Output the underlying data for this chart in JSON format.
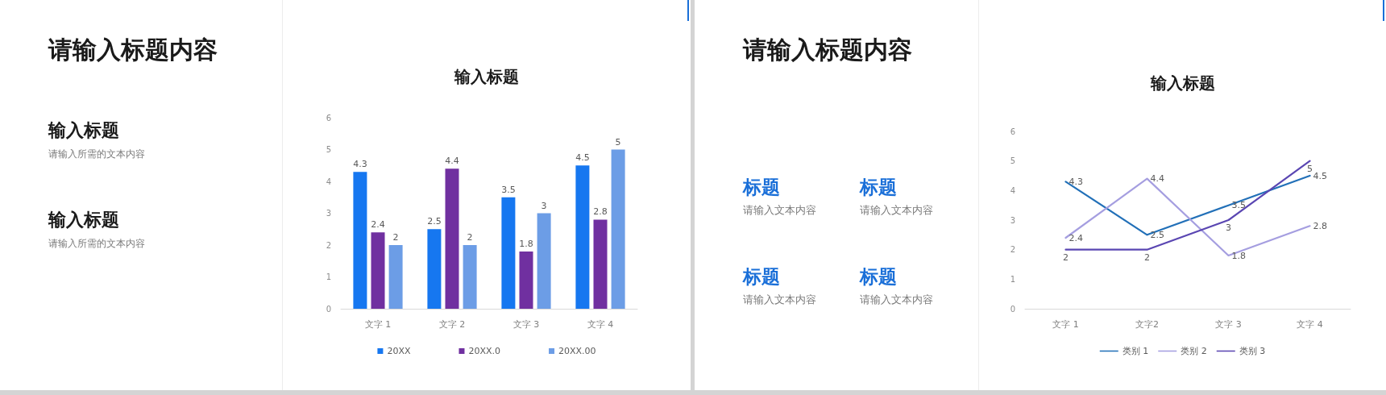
{
  "chart_data": [
    {
      "type": "other",
      "title": "请输入标题内容",
      "annotations": [
        "输入标题",
        "请输入所需的文本内容",
        "输入标题",
        "请输入所需的文本内容"
      ]
    },
    {
      "type": "bar",
      "title": "输入标题",
      "categories": [
        "文字 1",
        "文字 2",
        "文字 3",
        "文字 4"
      ],
      "series": [
        {
          "name": "20XX",
          "color": "#1677f0",
          "values": [
            4.3,
            2.5,
            3.5,
            4.5
          ]
        },
        {
          "name": "20XX.0",
          "color": "#7030a0",
          "values": [
            2.4,
            4.4,
            1.8,
            2.8
          ]
        },
        {
          "name": "20XX.00",
          "color": "#6c9de6",
          "values": [
            2,
            2,
            3,
            5
          ]
        }
      ],
      "ylim": [
        0,
        6
      ],
      "yticks": [
        0,
        1,
        2,
        3,
        4,
        5,
        6
      ],
      "grid": false,
      "legend": "bottom",
      "data_labels": true
    },
    {
      "type": "other",
      "title": "请输入标题内容",
      "annotations": [
        "标题",
        "请输入文本内容",
        "标题",
        "请输入文本内容",
        "标题",
        "请输入文本内容",
        "标题",
        "请输入文本内容"
      ]
    },
    {
      "type": "line",
      "title": "输入标题",
      "categories": [
        "文字 1",
        "文字2",
        "文字 3",
        "文字 4"
      ],
      "series": [
        {
          "name": "类别 1",
          "color": "#2270b8",
          "values": [
            4.3,
            2.5,
            3.5,
            4.5
          ]
        },
        {
          "name": "类别 2",
          "color": "#a59ee0",
          "values": [
            2.4,
            4.4,
            1.8,
            2.8
          ]
        },
        {
          "name": "类别 3",
          "color": "#5a46b2",
          "values": [
            2,
            2,
            3,
            5
          ]
        }
      ],
      "ylim": [
        0,
        6
      ],
      "yticks": [
        0,
        1,
        2,
        3,
        4,
        5,
        6
      ],
      "grid": false,
      "legend": "bottom",
      "data_labels": true,
      "marker": "none"
    }
  ]
}
